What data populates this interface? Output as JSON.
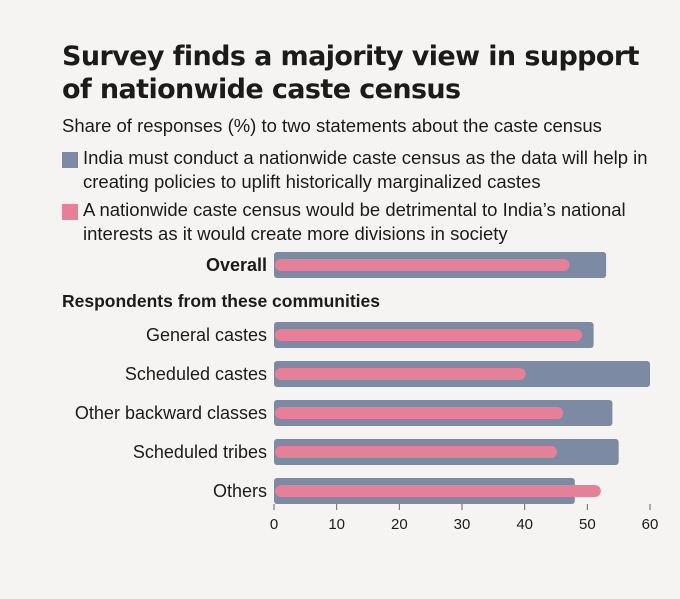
{
  "chart_data": {
    "type": "bar",
    "title": "Survey finds a majority view in support of nationwide caste census",
    "subtitle": "Share of responses (%) to two statements about the caste census",
    "group_heading": "Respondents from these communities",
    "categories": [
      "Overall",
      "General castes",
      "Scheduled castes",
      "Other backward classes",
      "Scheduled tribes",
      "Others"
    ],
    "series": [
      {
        "name": "India must conduct a nationwide caste census as the data will help in creating policies to uplift historically marginalized castes",
        "color": "#7c8aa3",
        "values": [
          53,
          51,
          60,
          54,
          55,
          48
        ]
      },
      {
        "name": "A nationwide caste census would be detrimental to India’s national interests as it would create more divisions in society",
        "color": "#e67f98",
        "values": [
          47,
          49,
          40,
          46,
          45,
          52
        ]
      }
    ],
    "x_ticks": [
      0,
      10,
      20,
      30,
      40,
      50,
      60
    ],
    "xlim": [
      0,
      60
    ]
  }
}
